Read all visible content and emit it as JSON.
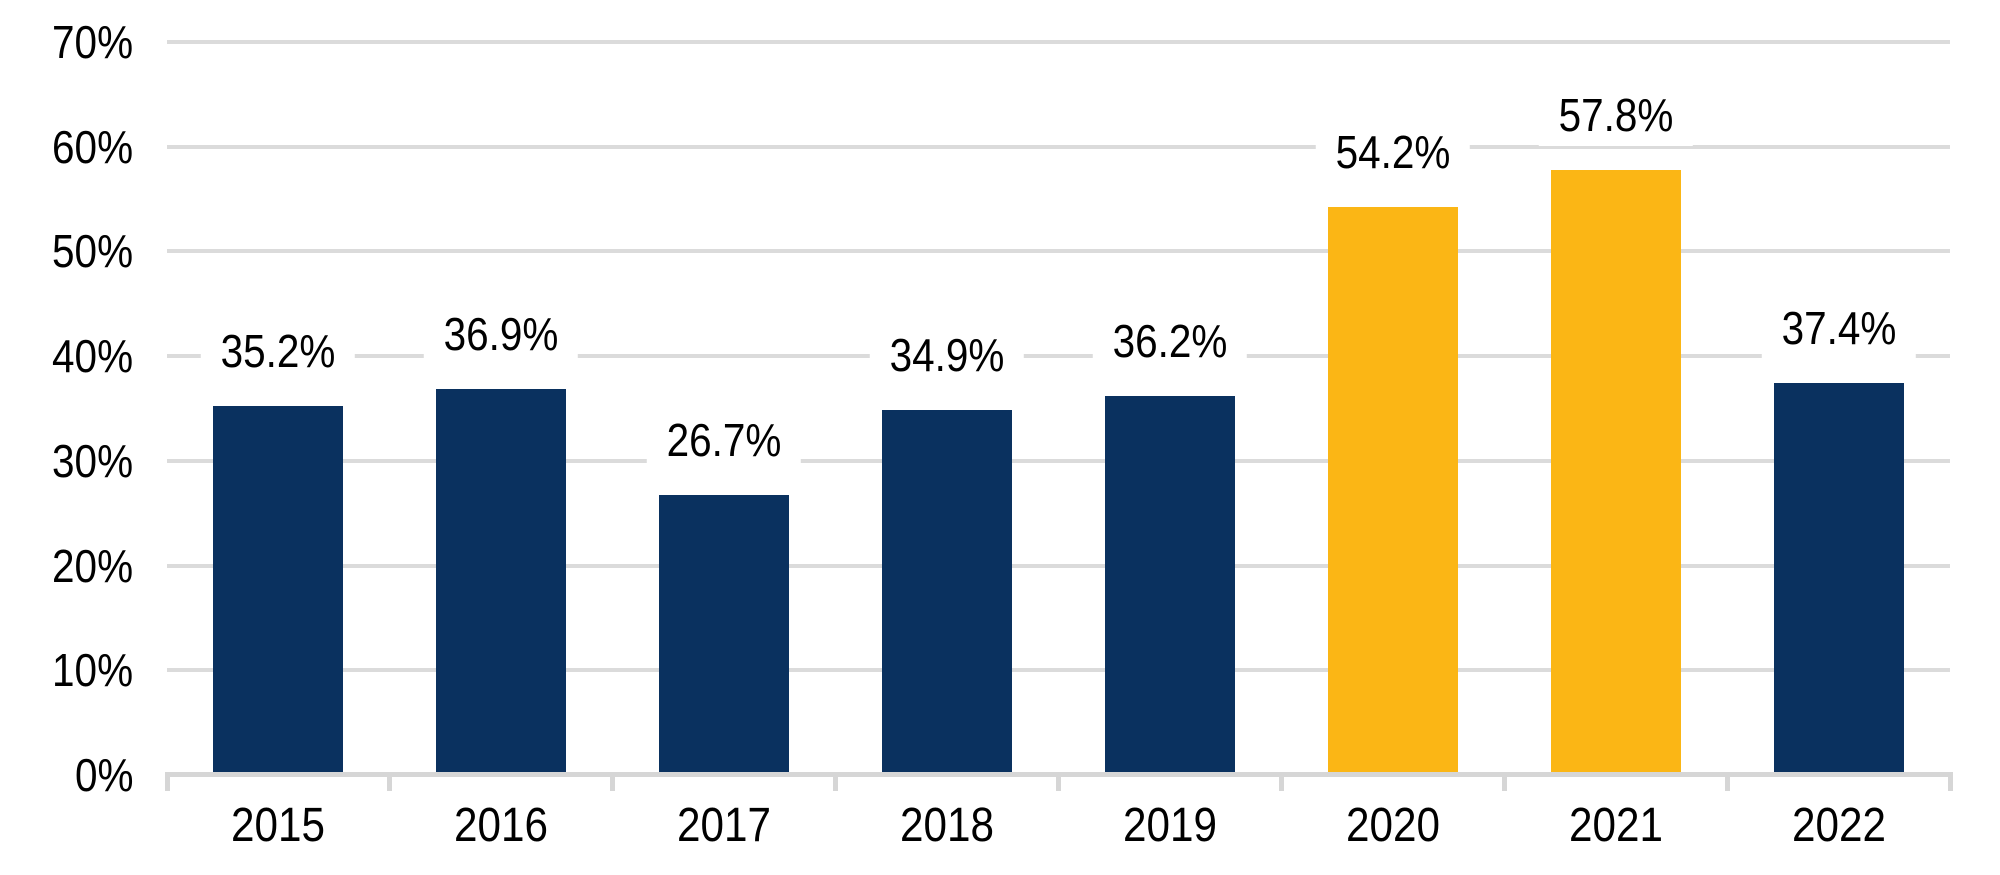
{
  "chart_data": {
    "type": "bar",
    "title": "",
    "xlabel": "",
    "ylabel": "",
    "categories": [
      "2015",
      "2016",
      "2017",
      "2018",
      "2019",
      "2020",
      "2021",
      "2022"
    ],
    "values": [
      35.2,
      36.9,
      26.7,
      34.9,
      36.2,
      54.2,
      57.8,
      37.4
    ],
    "data_labels": [
      "35.2%",
      "36.9%",
      "26.7%",
      "34.9%",
      "36.2%",
      "54.2%",
      "57.8%",
      "37.4%"
    ],
    "highlighted_indexes": [
      5,
      6
    ],
    "y_tick_labels": [
      "0%",
      "10%",
      "20%",
      "30%",
      "40%",
      "50%",
      "60%",
      "70%"
    ],
    "y_tick_values": [
      0,
      10,
      20,
      30,
      40,
      50,
      60,
      70
    ],
    "ylim": [
      0,
      70
    ],
    "grid": "horizontal-only",
    "legend": "none",
    "colors": {
      "bar": "#0A315F",
      "bar_highlight": "#FBB615",
      "gridline": "#DBDBDB",
      "axis_line": "#D6D6D6",
      "text": "#000000",
      "background": "#FFFFFF"
    }
  }
}
